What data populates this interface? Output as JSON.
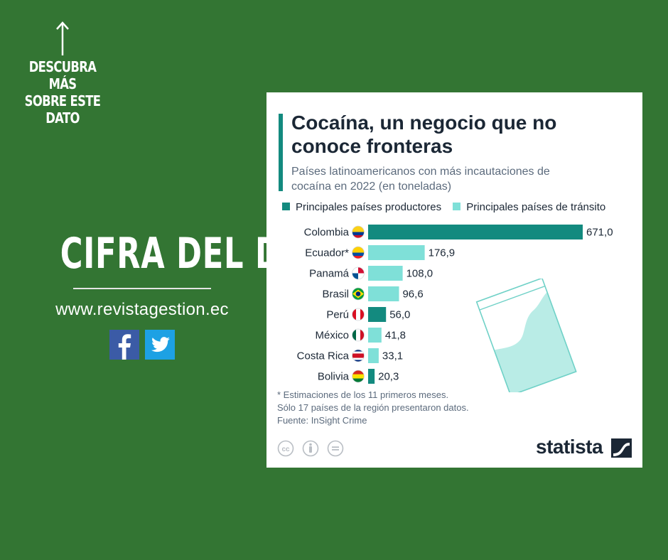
{
  "promo": {
    "discover_lines": [
      "DESCUBRA MÁS",
      "SOBRE ESTE",
      "DATO"
    ],
    "headline": "CIFRA DEL DÍA",
    "website": "www.revistagestion.ec"
  },
  "card": {
    "title": "Cocaína, un negocio que no conoce fronteras",
    "subtitle": "Países latinoamericanos con más incautaciones de cocaína en 2022 (en toneladas)",
    "notes": [
      "* Estimaciones de los 11 primeros meses.",
      "Sólo 17 países de la región presentaron datos.",
      "Fuente: InSight Crime"
    ],
    "brand": "statista"
  },
  "chart_data": {
    "type": "bar",
    "orientation": "horizontal",
    "title": "Cocaína, un negocio que no conoce fronteras",
    "subtitle": "Países latinoamericanos con más incautaciones de cocaína en 2022 (en toneladas)",
    "categories": [
      "Colombia",
      "Ecuador*",
      "Panamá",
      "Brasil",
      "Perú",
      "México",
      "Costa Rica",
      "Bolivia"
    ],
    "value_labels": [
      "671,0",
      "176,9",
      "108,0",
      "96,6",
      "56,0",
      "41,8",
      "33,1",
      "20,3"
    ],
    "values": [
      671.0,
      176.9,
      108.0,
      96.6,
      56.0,
      41.8,
      33.1,
      20.3
    ],
    "groups": [
      "productor",
      "transito",
      "transito",
      "transito",
      "productor",
      "transito",
      "transito",
      "productor"
    ],
    "legend": [
      {
        "key": "productor",
        "label": "Principales países productores",
        "color": "#138a7f"
      },
      {
        "key": "transito",
        "label": "Principales países de tránsito",
        "color": "#7fe0d8"
      }
    ],
    "xlim": [
      0,
      671
    ],
    "grid": false,
    "legend_position": "top"
  }
}
